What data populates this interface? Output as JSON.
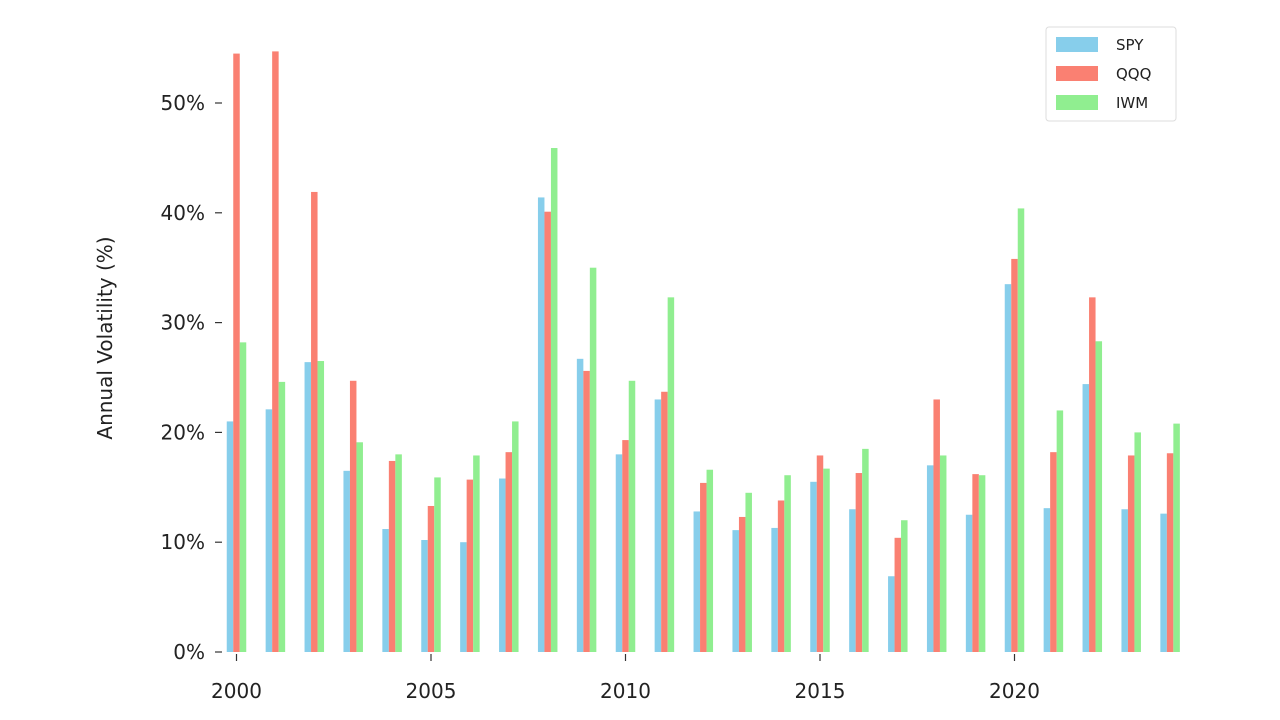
{
  "chart_data": {
    "type": "bar",
    "title": "",
    "xlabel": "",
    "ylabel": "Annual Volatility (%)",
    "categories": [
      2000,
      2001,
      2002,
      2003,
      2004,
      2005,
      2006,
      2007,
      2008,
      2009,
      2010,
      2011,
      2012,
      2013,
      2014,
      2015,
      2016,
      2017,
      2018,
      2019,
      2020,
      2021,
      2022,
      2023,
      2024
    ],
    "x_ticks": [
      "2000",
      "2005",
      "2010",
      "2015",
      "2020"
    ],
    "y_ticks": [
      "0%",
      "10%",
      "20%",
      "30%",
      "40%",
      "50%"
    ],
    "ylim": [
      0,
      55
    ],
    "grid": false,
    "legend_position": "top-right",
    "series": [
      {
        "name": "SPY",
        "color": "#87CEEB",
        "values": [
          21.0,
          22.1,
          26.4,
          16.5,
          11.2,
          10.2,
          10.0,
          15.8,
          41.4,
          26.7,
          18.0,
          23.0,
          12.8,
          11.1,
          11.3,
          15.5,
          13.0,
          6.9,
          17.0,
          12.5,
          33.5,
          13.1,
          24.4,
          13.0,
          12.6
        ]
      },
      {
        "name": "QQQ",
        "color": "#FA8072",
        "values": [
          54.5,
          54.7,
          41.9,
          24.7,
          17.4,
          13.3,
          15.7,
          18.2,
          40.1,
          25.6,
          19.3,
          23.7,
          15.4,
          12.3,
          13.8,
          17.9,
          16.3,
          10.4,
          23.0,
          16.2,
          35.8,
          18.2,
          32.3,
          17.9,
          18.1
        ]
      },
      {
        "name": "IWM",
        "color": "#90EE90",
        "values": [
          28.2,
          24.6,
          26.5,
          19.1,
          18.0,
          15.9,
          17.9,
          21.0,
          45.9,
          35.0,
          24.7,
          32.3,
          16.6,
          14.5,
          16.1,
          16.7,
          18.5,
          12.0,
          17.9,
          16.1,
          40.4,
          22.0,
          28.3,
          20.0,
          20.8
        ]
      }
    ]
  }
}
